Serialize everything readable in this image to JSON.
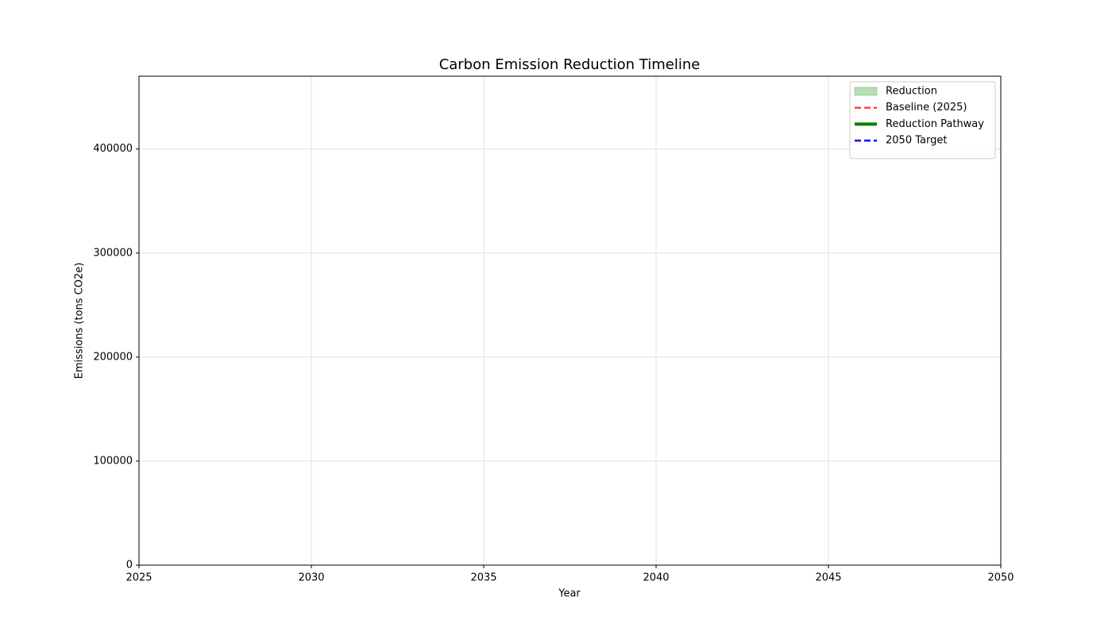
{
  "chart_data": {
    "type": "line",
    "title": "Carbon Emission Reduction Timeline",
    "x_label": "Year",
    "y_label": "Emissions (tons CO2e)",
    "xlim": [
      2025,
      2050
    ],
    "xticks": [
      2025,
      2030,
      2035,
      2040,
      2045,
      2050
    ],
    "ylim": [
      0,
      470000
    ],
    "yticks": [
      0,
      100000,
      200000,
      300000,
      400000
    ],
    "grid": true,
    "legend": "upper right",
    "series": [
      {
        "name": "Reduction",
        "color": "#2ca02c",
        "kind": "area",
        "opacity": 0.35
      },
      {
        "name": "Baseline (2025)",
        "color": "#ff4444",
        "kind": "line",
        "linestyle": "dashed",
        "width": 2.5
      },
      {
        "name": "Reduction Pathway",
        "color": "#008000",
        "kind": "line",
        "linestyle": "solid",
        "width": 4
      },
      {
        "name": "2050 Target",
        "color": "#0000ff",
        "kind": "line",
        "linestyle": "dashed",
        "width": 2.5
      }
    ]
  }
}
